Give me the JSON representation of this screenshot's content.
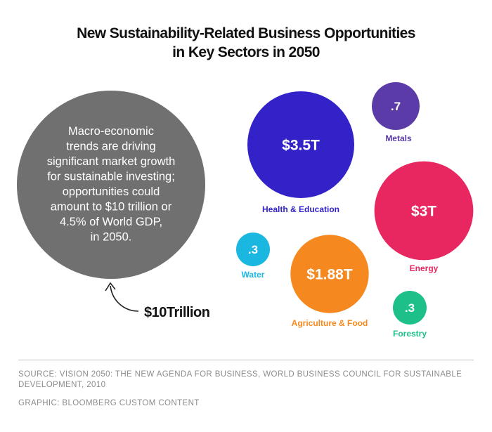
{
  "title": {
    "line1": "New Sustainability-Related Business Opportunities",
    "line2": "in Key Sectors in 2050"
  },
  "chart_data": {
    "type": "bubble",
    "total": {
      "value": 10,
      "unit": "trillion USD",
      "value_label": "$10Trillion",
      "text_lines": [
        "Macro-economic",
        "trends are driving",
        "significant market growth",
        "for sustainable investing;",
        "opportunities could",
        "amount to $10 trillion or",
        "4.5% of World GDP,",
        "in 2050."
      ],
      "color": "#707070"
    },
    "sectors": [
      {
        "name": "Health & Education",
        "value": 3.5,
        "value_label": "$3.5T",
        "color": "#3222c8"
      },
      {
        "name": "Metals",
        "value": 0.7,
        "value_label": ".7",
        "color": "#5a3ba8"
      },
      {
        "name": "Energy",
        "value": 3.0,
        "value_label": "$3T",
        "color": "#e8265f"
      },
      {
        "name": "Water",
        "value": 0.3,
        "value_label": ".3",
        "color": "#1ab7e0"
      },
      {
        "name": "Agriculture & Food",
        "value": 1.88,
        "value_label": "$1.88T",
        "color": "#f5891f"
      },
      {
        "name": "Forestry",
        "value": 0.3,
        "value_label": ".3",
        "color": "#1ec08a"
      }
    ]
  },
  "footer": {
    "source": "SOURCE: VISION 2050: THE NEW AGENDA FOR BUSINESS, WORLD BUSINESS COUNCIL FOR SUSTAINABLE DEVELOPMENT, 2010",
    "graphic": "GRAPHIC: BLOOMBERG CUSTOM CONTENT"
  }
}
